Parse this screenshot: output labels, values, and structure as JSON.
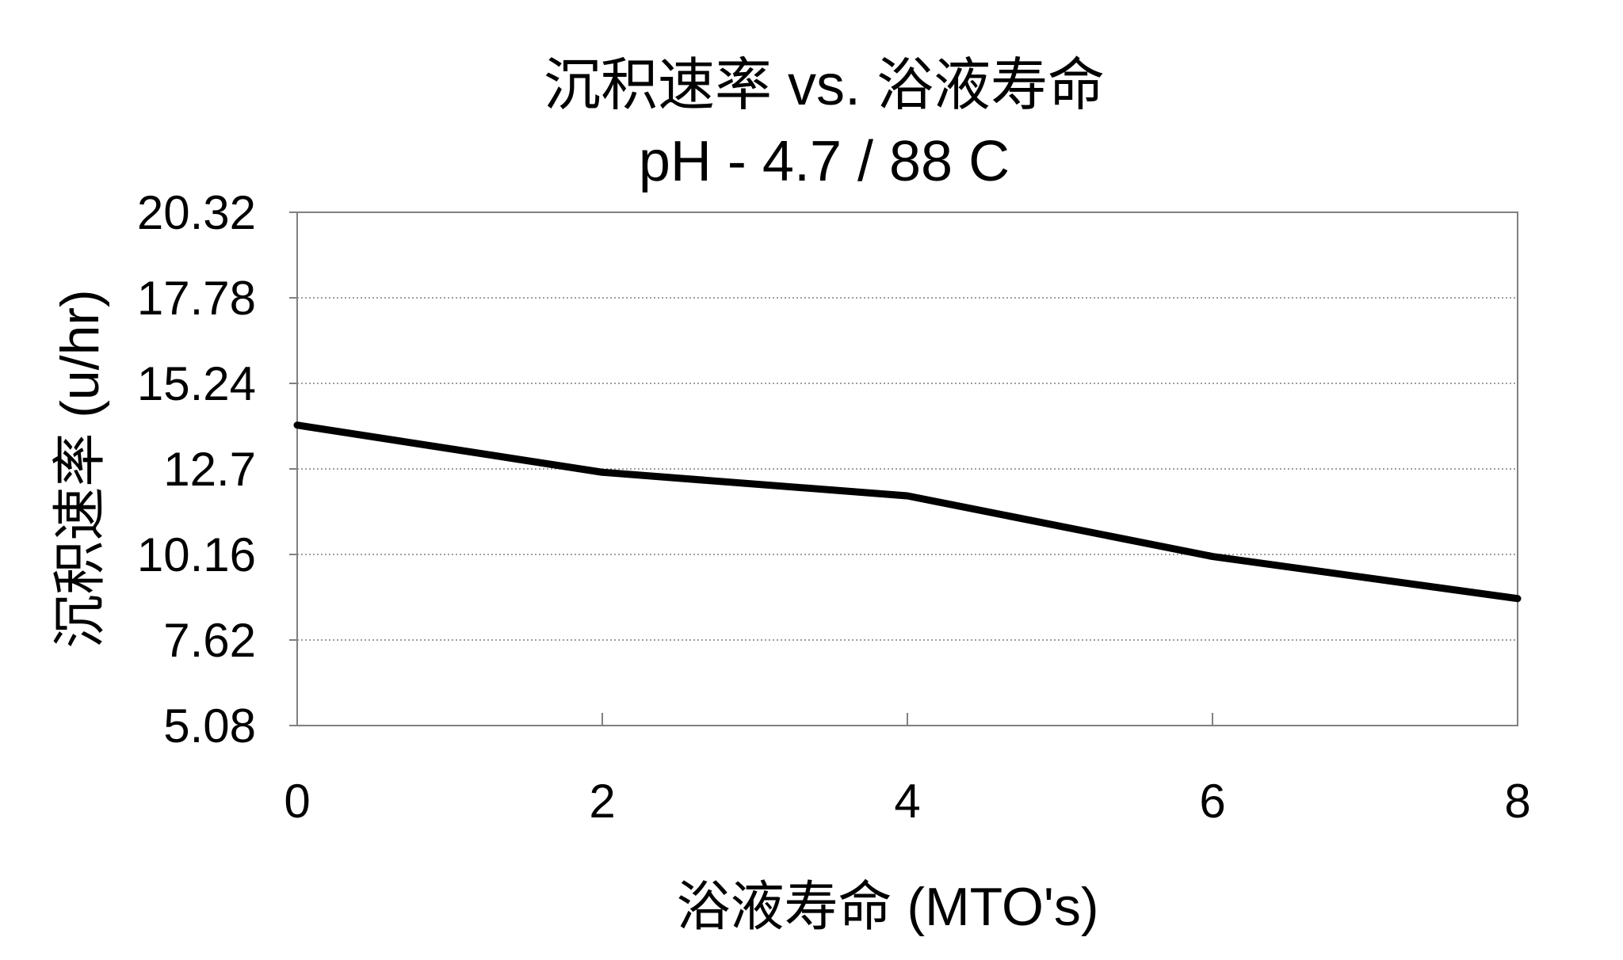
{
  "chart_data": {
    "type": "line",
    "title": "沉积速率 vs. 浴液寿命",
    "subtitle": "pH - 4.7 / 88 C",
    "xlabel": "浴液寿命 (MTO's)",
    "ylabel": "沉积速率 (u/hr)",
    "x": [
      0,
      2,
      4,
      6,
      8
    ],
    "series": [
      {
        "name": "",
        "values": [
          14.0,
          12.6,
          11.9,
          10.1,
          8.85
        ]
      }
    ],
    "xticks": [
      "0",
      "2",
      "4",
      "6",
      "8"
    ],
    "yticks": [
      "5.08",
      "7.62",
      "10.16",
      "12.7",
      "15.24",
      "17.78",
      "20.32"
    ],
    "xlim": [
      0,
      8
    ],
    "ylim": [
      5.08,
      20.32
    ],
    "grid": "horizontal-dotted",
    "legend": "none",
    "colors": {
      "line": "#000000",
      "grid": "#7f7f7f",
      "frame": "#808080",
      "background": "#ffffff"
    }
  }
}
